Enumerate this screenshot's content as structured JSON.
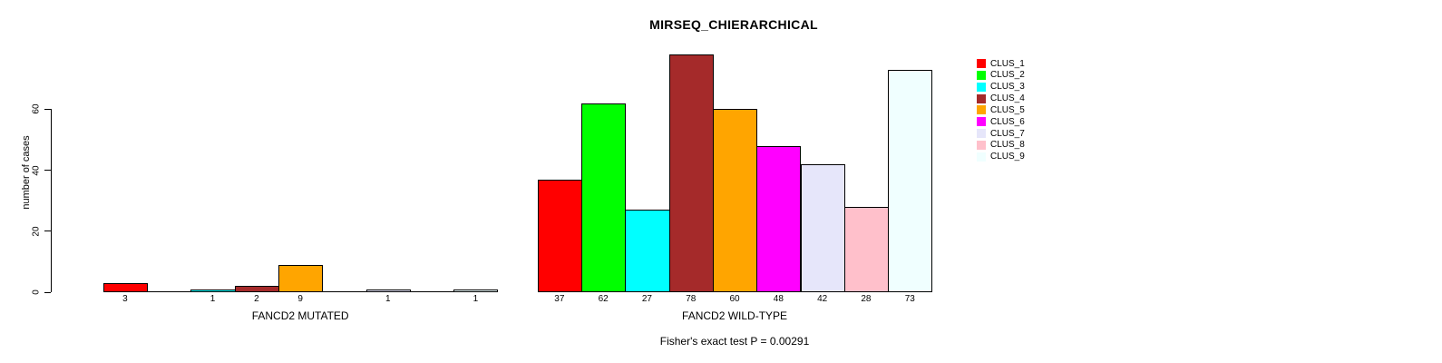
{
  "chart_data": {
    "type": "bar",
    "title": "MIRSEQ_CHIERARCHICAL",
    "ylabel": "number of cases",
    "xlabel": "",
    "groups": [
      "FANCD2 MUTATED",
      "FANCD2 WILD-TYPE"
    ],
    "yticks": [
      0,
      20,
      40,
      60
    ],
    "ylim": [
      0,
      78
    ],
    "grid": false,
    "legend_position": "right-outside",
    "bar_value_labels": true,
    "annotation": "Fisher's exact test P = 0.00291",
    "series": [
      {
        "name": "CLUS_1",
        "color": "#FF0000",
        "values": [
          3,
          37
        ]
      },
      {
        "name": "CLUS_2",
        "color": "#00FF00",
        "values": [
          0,
          62
        ]
      },
      {
        "name": "CLUS_3",
        "color": "#00FFFF",
        "values": [
          1,
          27
        ]
      },
      {
        "name": "CLUS_4",
        "color": "#A52A2A",
        "values": [
          2,
          78
        ]
      },
      {
        "name": "CLUS_5",
        "color": "#FFA500",
        "values": [
          9,
          60
        ]
      },
      {
        "name": "CLUS_6",
        "color": "#FF00FF",
        "values": [
          0,
          48
        ]
      },
      {
        "name": "CLUS_7",
        "color": "#E6E6FA",
        "values": [
          1,
          42
        ]
      },
      {
        "name": "CLUS_8",
        "color": "#FFC0CB",
        "values": [
          0,
          28
        ]
      },
      {
        "name": "CLUS_9",
        "color": "#F0FFFF",
        "values": [
          1,
          73
        ]
      }
    ]
  }
}
